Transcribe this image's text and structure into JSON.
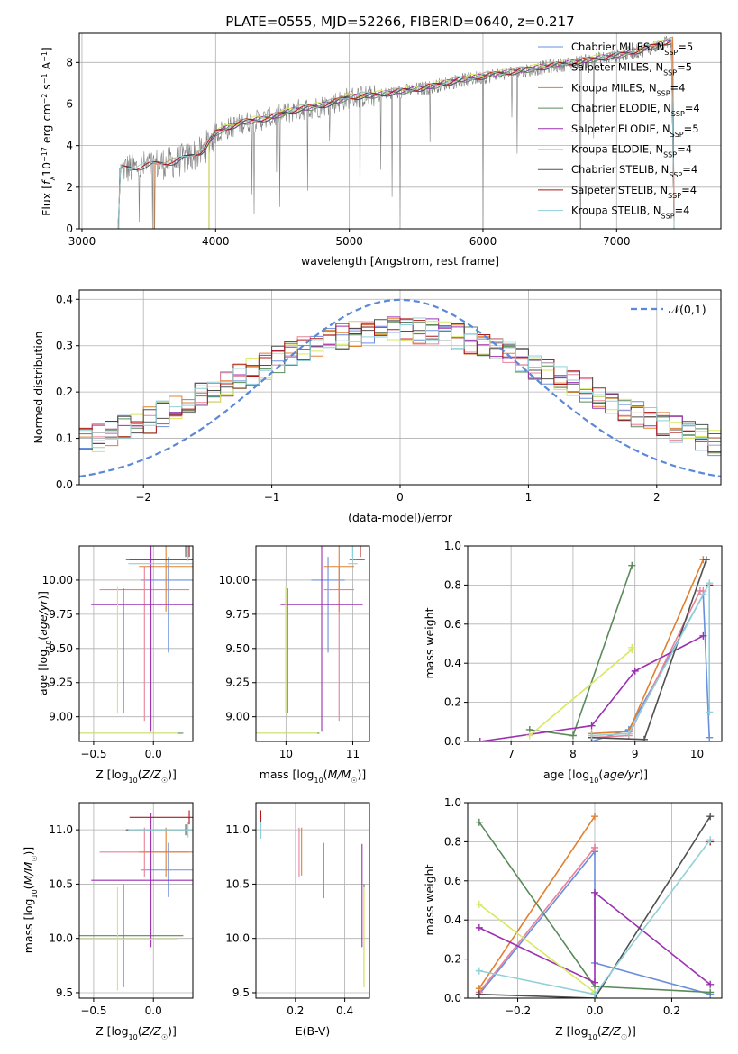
{
  "title": "PLATE=0555, MJD=52266, FIBERID=0640, z=0.217",
  "colors": {
    "Chabrier MILES": "#6a8fdd",
    "Salpeter MILES": "#e8829a",
    "Kroupa MILES": "#e08030",
    "Chabrier ELODIE": "#5a8a5a",
    "Salpeter ELODIE": "#9b30b0",
    "Kroupa ELODIE": "#d8e860",
    "Chabrier STELIB": "#505050",
    "Salpeter STELIB": "#b01818",
    "Kroupa STELIB": "#90d0d8",
    "normal": "#5b88d8",
    "data": "#808080"
  },
  "chart_data": [
    {
      "type": "line",
      "title": "PLATE=0555, MJD=52266, FIBERID=0640, z=0.217",
      "xlabel": "wavelength [Angstrom, rest frame]",
      "ylabel_parts": [
        "Flux [",
        "f",
        "λ",
        "10",
        "−17",
        " erg cm",
        "−2",
        " s",
        "−1",
        " A",
        "−1",
        "]"
      ],
      "xlim": [
        2980,
        7780
      ],
      "ylim": [
        0,
        9.4
      ],
      "xticks": [
        3000,
        4000,
        5000,
        6000,
        7000
      ],
      "yticks": [
        0,
        2,
        4,
        6,
        8
      ],
      "legend_position": "right",
      "legend": [
        {
          "name": "Chabrier MILES, N",
          "sub": "SSP",
          "tail": "=5"
        },
        {
          "name": "Salpeter MILES, N",
          "sub": "SSP",
          "tail": "=5"
        },
        {
          "name": "Kroupa MILES, N",
          "sub": "SSP",
          "tail": "=4"
        },
        {
          "name": "Chabrier ELODIE, N",
          "sub": "SSP",
          "tail": "=4"
        },
        {
          "name": "Salpeter ELODIE, N",
          "sub": "SSP",
          "tail": "=5"
        },
        {
          "name": "Kroupa ELODIE, N",
          "sub": "SSP",
          "tail": "=4"
        },
        {
          "name": "Chabrier STELIB, N",
          "sub": "SSP",
          "tail": "=4"
        },
        {
          "name": "Salpeter STELIB, N",
          "sub": "SSP",
          "tail": "=4"
        },
        {
          "name": "Kroupa STELIB, N",
          "sub": "SSP",
          "tail": "=4"
        }
      ],
      "continuum": [
        [
          3280,
          2.9
        ],
        [
          3400,
          2.9
        ],
        [
          3550,
          3.1
        ],
        [
          3700,
          3.2
        ],
        [
          3900,
          3.7
        ],
        [
          4000,
          4.6
        ],
        [
          4200,
          5.1
        ],
        [
          4400,
          5.3
        ],
        [
          4600,
          5.7
        ],
        [
          4800,
          5.9
        ],
        [
          5000,
          6.3
        ],
        [
          5200,
          6.4
        ],
        [
          5400,
          6.6
        ],
        [
          5600,
          6.8
        ],
        [
          5800,
          7.1
        ],
        [
          6000,
          7.3
        ],
        [
          6200,
          7.5
        ],
        [
          6400,
          7.7
        ],
        [
          6600,
          7.9
        ],
        [
          6800,
          8.1
        ],
        [
          7000,
          8.3
        ],
        [
          7200,
          8.6
        ],
        [
          7400,
          9.0
        ]
      ],
      "model_starts": {
        "MILES": 3540,
        "ELODIE": 3950,
        "STELIB": 3270
      }
    },
    {
      "type": "histogram",
      "xlabel": "(data-model)/error",
      "ylabel": "Normed distribution",
      "xlim": [
        -2.5,
        2.5
      ],
      "ylim": [
        0,
        0.42
      ],
      "xticks": [
        -2,
        -1,
        0,
        1,
        2
      ],
      "yticks": [
        0.0,
        0.1,
        0.2,
        0.3,
        0.4
      ],
      "legend": "𝒩(0,1)",
      "legend_position": "top-right",
      "bin_width": 0.1
    },
    {
      "type": "scatter",
      "xlabel": "Z [log10(Z/Z☉)]",
      "ylabel": "age [log10(age/yr)]",
      "xlim": [
        -0.62,
        0.33
      ],
      "ylim": [
        8.82,
        10.25
      ],
      "xticks": [
        -0.5,
        0.0
      ],
      "yticks": [
        9.0,
        9.25,
        9.5,
        9.75,
        10.0
      ]
    },
    {
      "type": "scatter",
      "xlabel": "mass [log10(M/M☉)]",
      "xlim": [
        9.55,
        11.25
      ],
      "ylim": [
        8.82,
        10.25
      ],
      "xticks": [
        10,
        11
      ],
      "yticks": [
        9.0,
        9.25,
        9.5,
        9.75,
        10.0
      ]
    },
    {
      "type": "line",
      "xlabel": "age [log10(age/yr)]",
      "ylabel": "mass weight",
      "xlim": [
        6.3,
        10.4
      ],
      "ylim": [
        0,
        1.0
      ],
      "xticks": [
        7,
        8,
        9,
        10
      ],
      "yticks": [
        0.0,
        0.2,
        0.4,
        0.6,
        0.8,
        1.0
      ]
    },
    {
      "type": "scatter",
      "xlabel": "Z [log10(Z/Z☉)]",
      "ylabel": "mass [log10(M/M☉)]",
      "xlim": [
        -0.62,
        0.33
      ],
      "ylim": [
        9.45,
        11.25
      ],
      "xticks": [
        -0.5,
        0.0
      ],
      "yticks": [
        9.5,
        10.0,
        10.5,
        11.0
      ]
    },
    {
      "type": "scatter",
      "xlabel": "E(B-V)",
      "xlim": [
        0.04,
        0.5
      ],
      "ylim": [
        9.45,
        11.25
      ],
      "xticks": [
        0.2,
        0.4
      ],
      "yticks": [
        9.5,
        10.0,
        10.5,
        11.0
      ]
    },
    {
      "type": "line",
      "xlabel": "Z [log10(Z/Z☉)]",
      "ylabel": "mass weight",
      "xlim": [
        -0.33,
        0.33
      ],
      "ylim": [
        0,
        1.0
      ],
      "xticks": [
        -0.2,
        0.0,
        0.2
      ],
      "yticks": [
        0.0,
        0.2,
        0.4,
        0.6,
        0.8,
        1.0
      ]
    }
  ],
  "models": [
    {
      "key": "Chabrier MILES",
      "Z": [
        -0.05,
        0.25,
        0.3
      ],
      "age": [
        10.0,
        8.78,
        10.0
      ],
      "mass": [
        10.72,
        10.55,
        10.88
      ],
      "ageerr": [
        -0.53,
        0.02
      ],
      "massrange": [
        10.38,
        10.88
      ],
      "ebv": 0.315,
      "ebvrange": [
        10.37,
        10.88
      ],
      "aw": [
        [
          8.3,
          0.0
        ],
        [
          8.9,
          0.06
        ],
        [
          10.1,
          0.75
        ],
        [
          10.2,
          0.02
        ]
      ],
      "zw": [
        [
          -0.3,
          0.02
        ],
        [
          0.0,
          0.75
        ],
        [
          0.0,
          0.18
        ],
        [
          0.3,
          0.02
        ]
      ]
    },
    {
      "key": "Salpeter MILES",
      "Z": [
        -0.4,
        0.05,
        0.25
      ],
      "age": [
        9.93,
        8.0,
        10.0
      ],
      "mass": [
        10.65,
        10.35,
        10.95
      ],
      "ageerr": [
        -0.96,
        0.02
      ],
      "massrange": [
        10.57,
        11.02
      ],
      "ebv": 0.215,
      "ebvrange": [
        10.57,
        11.02
      ],
      "aw": [
        [
          8.3,
          0.02
        ],
        [
          8.9,
          0.03
        ],
        [
          10.05,
          0.77
        ],
        [
          10.1,
          0.77
        ]
      ],
      "zw": [
        [
          -0.3,
          0.03
        ],
        [
          0.0,
          0.77
        ],
        [
          0.0,
          0.77
        ]
      ]
    },
    {
      "key": "Kroupa MILES",
      "Z": [
        -0.07,
        0.1,
        0.28
      ],
      "age": [
        10.1,
        8.0,
        10.15
      ],
      "mass": [
        10.88,
        10.47,
        11.0
      ],
      "ageerr": [
        -0.33,
        0.02
      ],
      "massrange": [
        10.57,
        11.02
      ],
      "ebv": 0.225,
      "ebvrange": [
        10.58,
        11.02
      ],
      "aw": [
        [
          8.3,
          0.04
        ],
        [
          8.9,
          0.05
        ],
        [
          10.1,
          0.93
        ]
      ],
      "zw": [
        [
          -0.3,
          0.05
        ],
        [
          0.0,
          0.93
        ]
      ]
    },
    {
      "key": "Chabrier ELODIE",
      "Z": [
        -0.25
      ],
      "age": [
        8.88
      ],
      "mass": [
        9.75
      ],
      "ageerr": [
        1.06,
        0.0
      ],
      "massrange": [
        9.55,
        10.5
      ],
      "ebv": 0.478,
      "ebvrange": [
        9.55,
        10.5
      ],
      "aw": [
        [
          7.3,
          0.06
        ],
        [
          8.0,
          0.03
        ],
        [
          8.95,
          0.9
        ]
      ],
      "zw": [
        [
          -0.3,
          0.9
        ],
        [
          0.0,
          0.06
        ],
        [
          0.3,
          0.03
        ]
      ]
    },
    {
      "key": "Salpeter ELODIE",
      "Z": [
        -0.02
      ],
      "age": [
        9.82
      ],
      "mass": [
        10.25
      ],
      "ageerr": [
        -0.93,
        0.33
      ],
      "massrange": [
        9.92,
        11.15
      ],
      "ebv": 0.47,
      "ebvrange": [
        9.92,
        10.87
      ],
      "aw": [
        [
          6.5,
          0.0
        ],
        [
          8.3,
          0.08
        ],
        [
          9.0,
          0.36
        ],
        [
          10.1,
          0.54
        ]
      ],
      "zw": [
        [
          -0.3,
          0.36
        ],
        [
          0.0,
          0.08
        ],
        [
          0.0,
          0.54
        ],
        [
          0.3,
          0.07
        ]
      ]
    },
    {
      "key": "Kroupa ELODIE",
      "Z": [
        -0.3
      ],
      "age": [
        8.88
      ],
      "mass": [
        9.8
      ],
      "ageerr": [
        1.07,
        0.0
      ],
      "massrange": [
        9.52,
        10.47
      ],
      "ebv": 0.478,
      "ebvrange": [
        9.55,
        10.47
      ],
      "aw": [
        [
          7.3,
          0.03
        ],
        [
          8.95,
          0.47
        ],
        [
          8.95,
          0.48
        ]
      ],
      "zw": [
        [
          -0.3,
          0.48
        ],
        [
          0.0,
          0.03
        ]
      ]
    },
    {
      "key": "Chabrier STELIB",
      "Z": [
        0.27
      ],
      "age": [
        10.15
      ],
      "mass": [
        10.97
      ],
      "ageerr": [
        0.02,
        0.02
      ],
      "massrange": [
        10.95,
        11.05
      ],
      "ebv": 0.06,
      "ebvrange": [
        10.92,
        11.07
      ],
      "aw": [
        [
          8.3,
          0.02
        ],
        [
          9.15,
          0.01
        ],
        [
          10.15,
          0.93
        ]
      ],
      "zw": [
        [
          -0.3,
          0.02
        ],
        [
          0.0,
          0.0
        ],
        [
          0.3,
          0.93
        ]
      ]
    },
    {
      "key": "Salpeter STELIB",
      "Z": [
        0.3
      ],
      "age": [
        10.15
      ],
      "mass": [
        11.12
      ],
      "ageerr": [
        0.02,
        0.02
      ],
      "massrange": [
        11.05,
        11.18
      ],
      "ebv": 0.06,
      "ebvrange": [
        11.05,
        11.18
      ],
      "aw": [
        [
          10.2,
          0.8
        ]
      ],
      "zw": [
        [
          0.3,
          0.8
        ]
      ]
    },
    {
      "key": "Kroupa STELIB",
      "Z": [
        0.29
      ],
      "age": [
        10.12
      ],
      "mass": [
        11.0
      ],
      "ageerr": [
        0.02,
        0.02
      ],
      "massrange": [
        10.93,
        11.07
      ],
      "ebv": 0.06,
      "ebvrange": [
        10.92,
        11.07
      ],
      "aw": [
        [
          8.3,
          0.03
        ],
        [
          8.9,
          0.04
        ],
        [
          10.2,
          0.81
        ],
        [
          10.2,
          0.15
        ]
      ],
      "zw": [
        [
          -0.3,
          0.14
        ],
        [
          0.0,
          0.02
        ],
        [
          0.3,
          0.81
        ]
      ]
    }
  ]
}
